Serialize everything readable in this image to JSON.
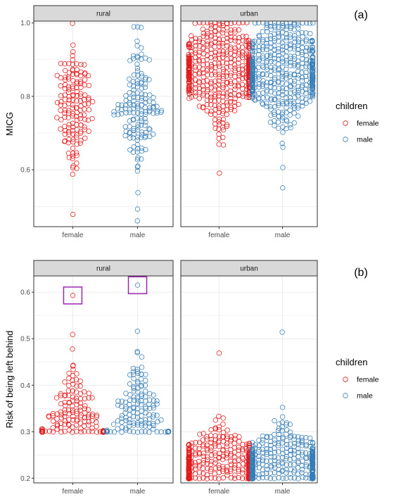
{
  "chart_data": [
    {
      "type": "scatter",
      "tag": "(a)",
      "ylabel": "MICG",
      "ylim": [
        0.445,
        1.005
      ],
      "yticks": [
        "0.6",
        "0.8",
        "1.0"
      ],
      "ytick_values": [
        0.6,
        0.8,
        1.0
      ],
      "x_categories": [
        "female",
        "male"
      ],
      "facets": [
        {
          "label": "rural",
          "series": [
            {
              "name": "female",
              "n": 150,
              "min": 0.48,
              "max": 1.0,
              "median": 0.77,
              "spread": 0.08
            },
            {
              "name": "male",
              "n": 150,
              "min": 0.46,
              "max": 0.99,
              "median": 0.77,
              "spread": 0.08
            }
          ]
        },
        {
          "label": "urban",
          "series": [
            {
              "name": "female",
              "n": 480,
              "min": 0.59,
              "max": 1.0,
              "median": 0.87,
              "spread": 0.07
            },
            {
              "name": "male",
              "n": 480,
              "min": 0.55,
              "max": 1.0,
              "median": 0.87,
              "spread": 0.07
            }
          ]
        }
      ],
      "legend": {
        "title": "children",
        "entries": [
          "female",
          "male"
        ],
        "placement": "right"
      },
      "grid": true
    },
    {
      "type": "scatter",
      "tag": "(b)",
      "ylabel": "Risk of being left behind",
      "ylim": [
        0.19,
        0.635
      ],
      "yticks": [
        "0.2",
        "0.3",
        "0.4",
        "0.5",
        "0.6"
      ],
      "ytick_values": [
        0.2,
        0.3,
        0.4,
        0.5,
        0.6
      ],
      "x_categories": [
        "female",
        "male"
      ],
      "facets": [
        {
          "label": "rural",
          "series": [
            {
              "name": "female",
              "n": 150,
              "min": 0.3,
              "max": 0.51,
              "median": 0.33,
              "spread": 0.05
            },
            {
              "name": "male",
              "n": 150,
              "min": 0.3,
              "max": 0.515,
              "median": 0.33,
              "spread": 0.05
            }
          ],
          "highlighted_points": [
            {
              "series": "female",
              "y": 0.593
            },
            {
              "series": "male",
              "y": 0.615
            }
          ]
        },
        {
          "label": "urban",
          "series": [
            {
              "name": "female",
              "n": 480,
              "min": 0.2,
              "max": 0.47,
              "median": 0.22,
              "spread": 0.04
            },
            {
              "name": "male",
              "n": 480,
              "min": 0.2,
              "max": 0.515,
              "median": 0.22,
              "spread": 0.04
            }
          ]
        }
      ],
      "legend": {
        "title": "children",
        "entries": [
          "female",
          "male"
        ],
        "placement": "right"
      },
      "grid": true
    }
  ],
  "colors": {
    "female": "#e41a1c",
    "male": "#377eb8",
    "highlight_box": "#9c27b0",
    "strip_fill": "#d9d9d9"
  }
}
